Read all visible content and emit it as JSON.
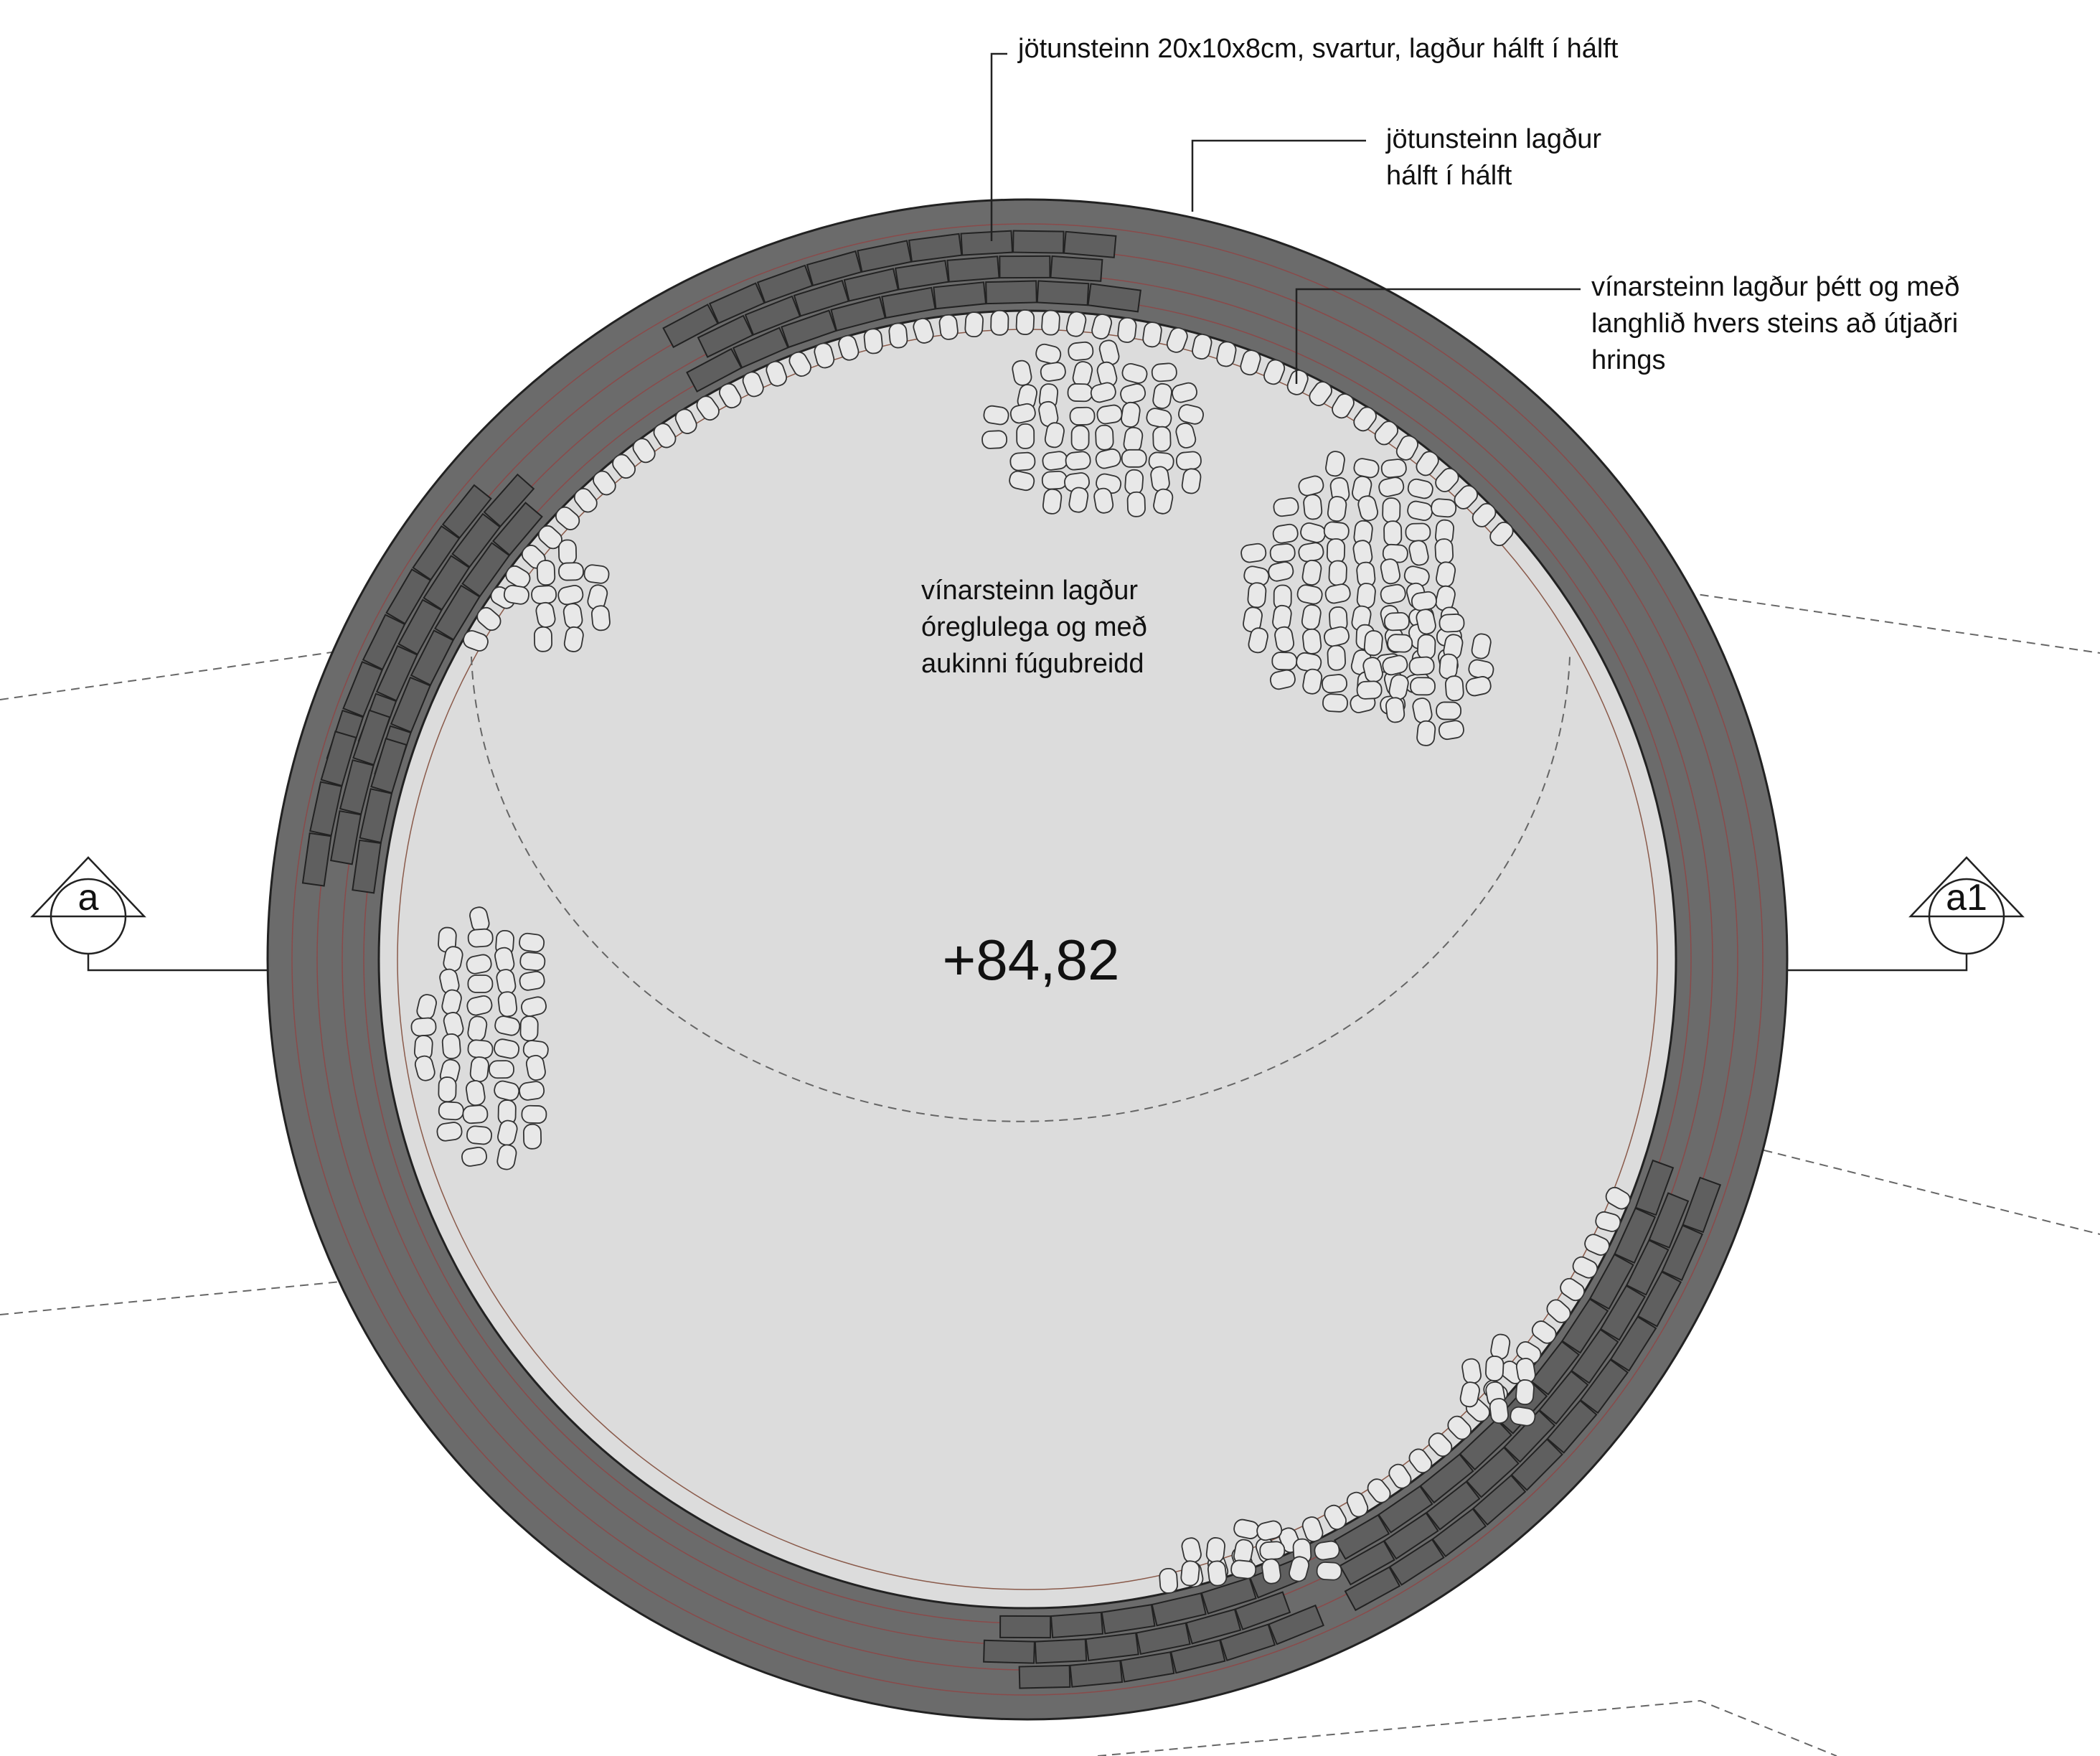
{
  "annotations": [
    {
      "lines": [
        "jötunsteinn 20x10x8cm, svartur, lagður hálft í hálft"
      ]
    },
    {
      "lines": [
        "jötunsteinn lagður",
        "hálft í hálft"
      ]
    },
    {
      "lines": [
        "vínarsteinn lagður þétt og með",
        "langhlið hvers steins að útjaðri",
        "hrings"
      ]
    },
    {
      "lines": [
        "vínarsteinn lagður",
        "óreglulega og með",
        "aukinni fúgubreidd"
      ]
    }
  ],
  "elevation": "+84,82",
  "section_markers": [
    "a",
    "a1"
  ]
}
